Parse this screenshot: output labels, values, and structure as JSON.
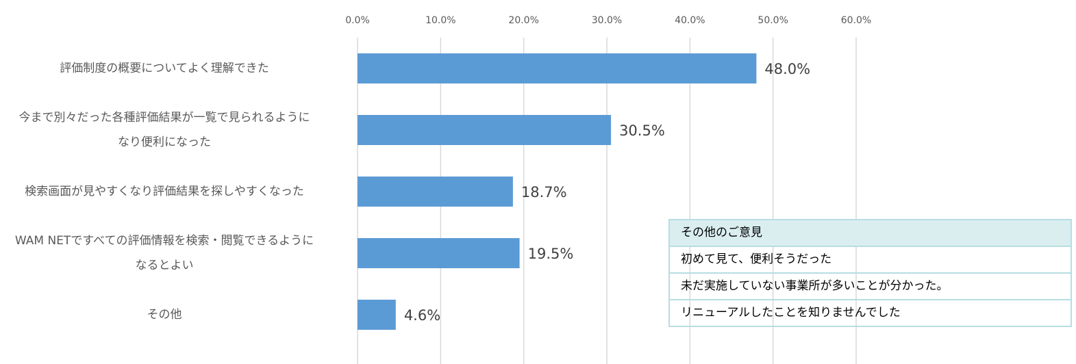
{
  "chart_data": {
    "type": "barh",
    "categories": [
      "評価制度の概要についてよく理解できた",
      "今まで別々だった各種評価結果が一覧で見られるように\nなり便利になった",
      "検索画面が見やすくなり評価結果を探しやすくなった",
      "WAM NETですべての評価情報を検索・閲覧できるように\nなるとよい",
      "その他"
    ],
    "values": [
      48.0,
      30.5,
      18.7,
      19.5,
      4.6
    ],
    "value_labels": [
      "48.0%",
      "30.5%",
      "18.7%",
      "19.5%",
      "4.6%"
    ],
    "color": "#5b9bd5",
    "xlim": [
      0,
      60
    ],
    "xticks": [
      {
        "value": 0,
        "label": "0.0%"
      },
      {
        "value": 10,
        "label": "10.0%"
      },
      {
        "value": 20,
        "label": "20.0%"
      },
      {
        "value": 30,
        "label": "30.0%"
      },
      {
        "value": 40,
        "label": "40.0%"
      },
      {
        "value": 50,
        "label": "50.0%"
      },
      {
        "value": 60,
        "label": "60.0%"
      }
    ],
    "grid": true
  },
  "table": {
    "title": "その他のご意見",
    "rows": [
      "初めて見て、便利そうだった",
      "未だ実施していない事業所が多いことが分かった。",
      "リニューアルしたことを知りませんでした"
    ]
  }
}
